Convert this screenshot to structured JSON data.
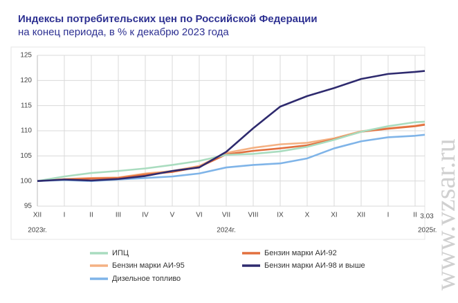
{
  "chart_data": {
    "type": "line",
    "title": "Индексы потребительских цен по Российской Федерации",
    "subtitle": "на конец периода, в % к декабрю 2023 года",
    "categories": [
      "XII",
      "I",
      "II",
      "III",
      "IV",
      "V",
      "VI",
      "VII",
      "VIII",
      "IX",
      "X",
      "XI",
      "XII",
      "I",
      "II",
      "3.03"
    ],
    "year_labels": [
      "2023г.",
      "2024г.",
      "2025г."
    ],
    "ylim": [
      95,
      125
    ],
    "yticks": [
      95,
      100,
      105,
      110,
      115,
      120,
      125
    ],
    "grid": true,
    "series": [
      {
        "name": "ИПЦ",
        "color": "#a9dcbf",
        "values": [
          100,
          100.9,
          101.6,
          102.0,
          102.5,
          103.2,
          104.0,
          105.2,
          105.4,
          105.9,
          106.8,
          108.2,
          109.8,
          110.9,
          111.7,
          111.8
        ]
      },
      {
        "name": "Бензин марки АИ-92",
        "color": "#e2703f",
        "values": [
          100,
          100.3,
          100.5,
          100.6,
          101.3,
          101.8,
          102.8,
          105.3,
          106.0,
          106.5,
          107.1,
          108.3,
          109.8,
          110.4,
          110.9,
          111.2
        ]
      },
      {
        "name": "Бензин марки АИ-95",
        "color": "#f4b183",
        "values": [
          100,
          100.4,
          100.6,
          100.7,
          101.5,
          102.0,
          103.0,
          105.6,
          106.6,
          107.3,
          107.6,
          108.5,
          109.9,
          110.5,
          111.0,
          111.3
        ]
      },
      {
        "name": "Бензин марки АИ-98 и выше",
        "color": "#2e2a6e",
        "values": [
          100,
          100.3,
          100.1,
          100.4,
          101.0,
          102.0,
          102.7,
          105.8,
          110.5,
          114.8,
          116.9,
          118.5,
          120.3,
          121.3,
          121.7,
          121.9
        ]
      },
      {
        "name": "Дизельное топливо",
        "color": "#7fb4e8",
        "values": [
          100,
          100.2,
          100.0,
          100.3,
          100.6,
          100.9,
          101.5,
          102.7,
          103.2,
          103.5,
          104.5,
          106.5,
          107.9,
          108.7,
          109.0,
          109.2
        ]
      }
    ],
    "watermark": "www.vzsar.ru"
  }
}
